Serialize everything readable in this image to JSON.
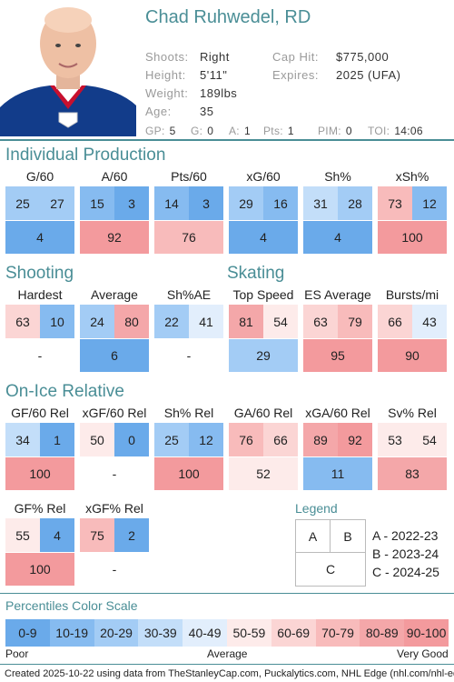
{
  "player": {
    "name": "Chad Ruhwedel, RD",
    "fields": [
      {
        "label": "Shoots:",
        "value": "Right"
      },
      {
        "label": "Height:",
        "value": "5'11\""
      },
      {
        "label": "Weight:",
        "value": "189lbs"
      },
      {
        "label": "Age:",
        "value": "35"
      }
    ],
    "contract": [
      {
        "label": "Cap Hit:",
        "value": "$775,000"
      },
      {
        "label": "Expires:",
        "value": "2025 (UFA)"
      }
    ],
    "stats": [
      {
        "label": "GP:",
        "value": "5"
      },
      {
        "label": "G:",
        "value": "0"
      },
      {
        "label": "A:",
        "value": "1"
      },
      {
        "label": "Pts:",
        "value": "1"
      },
      {
        "label": "PIM:",
        "value": "0"
      },
      {
        "label": "TOI:",
        "value": "14:06"
      }
    ]
  },
  "sections": {
    "production": "Individual Production",
    "shooting": "Shooting",
    "skating": "Skating",
    "onice": "On-Ice Relative"
  },
  "metrics": [
    {
      "label": "G/60",
      "a": "25",
      "b": "27",
      "c": "4"
    },
    {
      "label": "A/60",
      "a": "15",
      "b": "3",
      "c": "92"
    },
    {
      "label": "Pts/60",
      "a": "14",
      "b": "3",
      "c": "76"
    },
    {
      "label": "xG/60",
      "a": "29",
      "b": "16",
      "c": "4"
    },
    {
      "label": "Sh%",
      "a": "31",
      "b": "28",
      "c": "4"
    },
    {
      "label": "xSh%",
      "a": "73",
      "b": "12",
      "c": "100"
    },
    {
      "label": "Hardest",
      "a": "63",
      "b": "10",
      "c": "-"
    },
    {
      "label": "Average",
      "a": "24",
      "b": "80",
      "c": "6"
    },
    {
      "label": "Sh%AE",
      "a": "22",
      "b": "41",
      "c": "-"
    },
    {
      "label": "Top Speed",
      "a": "81",
      "b": "54",
      "c": "29"
    },
    {
      "label": "ES Average",
      "a": "63",
      "b": "79",
      "c": "95"
    },
    {
      "label": "Bursts/mi",
      "a": "66",
      "b": "43",
      "c": "90"
    },
    {
      "label": "GF/60 Rel",
      "a": "34",
      "b": "1",
      "c": "100"
    },
    {
      "label": "xGF/60 Rel",
      "a": "50",
      "b": "0",
      "c": "-"
    },
    {
      "label": "Sh% Rel",
      "a": "25",
      "b": "12",
      "c": "100"
    },
    {
      "label": "GA/60 Rel",
      "a": "76",
      "b": "66",
      "c": "52"
    },
    {
      "label": "xGA/60 Rel",
      "a": "89",
      "b": "92",
      "c": "11"
    },
    {
      "label": "Sv% Rel",
      "a": "53",
      "b": "54",
      "c": "83"
    },
    {
      "label": "GF% Rel",
      "a": "55",
      "b": "4",
      "c": "100"
    },
    {
      "label": "xGF% Rel",
      "a": "75",
      "b": "2",
      "c": "-"
    }
  ],
  "legend": {
    "title": "Legend",
    "a": "A",
    "b": "B",
    "c": "C",
    "items": [
      "A - 2022-23",
      "B - 2023-24",
      "C - 2024-25"
    ]
  },
  "scale": {
    "title": "Percentiles Color Scale",
    "bins": [
      "0-9",
      "10-19",
      "20-29",
      "30-39",
      "40-49",
      "50-59",
      "60-69",
      "70-79",
      "80-89",
      "90-100"
    ],
    "colors": [
      "#6aaaea",
      "#86bbf0",
      "#a3ccf5",
      "#c3def9",
      "#e2eefc",
      "#fdebea",
      "#fbd5d4",
      "#f8bbbb",
      "#f4a7a9",
      "#f39a9d"
    ],
    "poor": "Poor",
    "average": "Average",
    "good": "Very Good"
  },
  "footer": "Created 2025-10-22 using data from TheStanleyCap.com, Puckalytics.com, NHL Edge (nhl.com/nhl-edge)."
}
